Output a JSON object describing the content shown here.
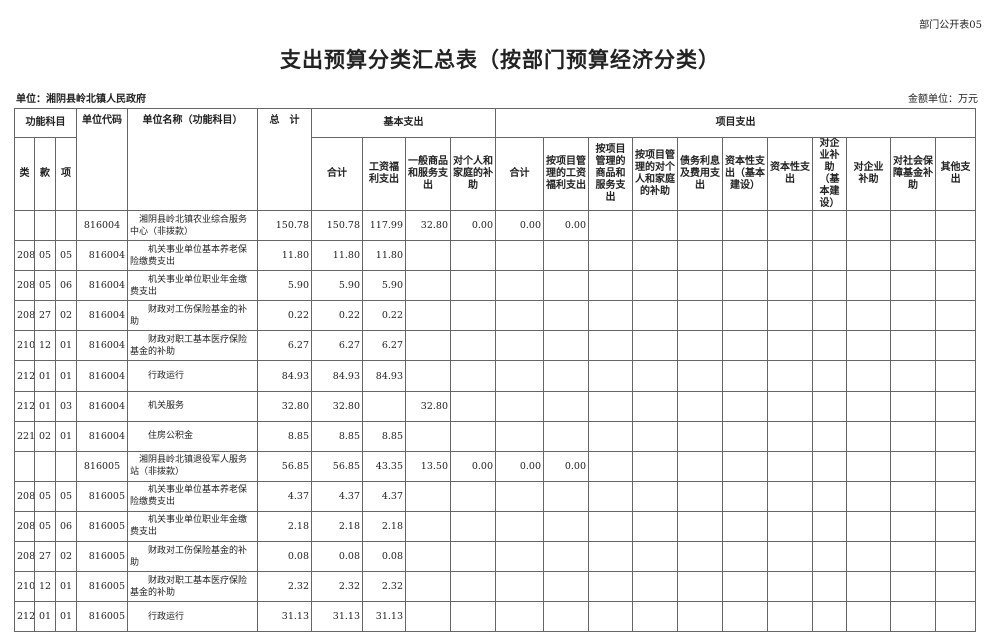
{
  "form_no": "部门公开表05",
  "title": "支出预算分类汇总表（按部门预算经济分类）",
  "unit": "单位：湘阴县岭北镇人民政府",
  "money_unit": "金额单位：万元",
  "headers": {
    "func_subject": "功能科目",
    "lei": "类",
    "kuan": "款",
    "xiang": "项",
    "unit_code": "单位代码",
    "unit_name": "单位名称（功能科目）",
    "total": "总　计",
    "basic": "基本支出",
    "project": "项目支出",
    "basic_cols": [
      "合计",
      "工资福利支出",
      "一般商品和服务支出",
      "对个人和家庭的补助"
    ],
    "project_cols": [
      "合计",
      "按项目管理的工资福利支出",
      "按项目管理的商品和服务支出",
      "按项目管理的对个人和家庭的补助",
      "债务利息及费用支出",
      "资本性支出（基本建设）",
      "资本性支出",
      "对企业补助（基本建设）",
      "对企业补助",
      "对社会保障基金补助",
      "其他支出"
    ]
  },
  "rows": [
    [
      "",
      "",
      "",
      "816004",
      "湘阴县岭北镇农业综合服务中心（非拨款）",
      "150.78",
      "150.78",
      "117.99",
      "32.80",
      "0.00",
      "0.00",
      "0.00"
    ],
    [
      "208",
      "05",
      "05",
      "816004",
      "机关事业单位基本养老保险缴费支出",
      "11.80",
      "11.80",
      "11.80",
      "",
      "",
      "",
      ""
    ],
    [
      "208",
      "05",
      "06",
      "816004",
      "机关事业单位职业年金缴费支出",
      "5.90",
      "5.90",
      "5.90",
      "",
      "",
      "",
      ""
    ],
    [
      "208",
      "27",
      "02",
      "816004",
      "财政对工伤保险基金的补助",
      "0.22",
      "0.22",
      "0.22",
      "",
      "",
      "",
      ""
    ],
    [
      "210",
      "12",
      "01",
      "816004",
      "财政对职工基本医疗保险基金的补助",
      "6.27",
      "6.27",
      "6.27",
      "",
      "",
      "",
      ""
    ],
    [
      "212",
      "01",
      "01",
      "816004",
      "行政运行",
      "84.93",
      "84.93",
      "84.93",
      "",
      "",
      "",
      ""
    ],
    [
      "212",
      "01",
      "03",
      "816004",
      "机关服务",
      "32.80",
      "32.80",
      "",
      "32.80",
      "",
      "",
      ""
    ],
    [
      "221",
      "02",
      "01",
      "816004",
      "住房公积金",
      "8.85",
      "8.85",
      "8.85",
      "",
      "",
      "",
      ""
    ],
    [
      "",
      "",
      "",
      "816005",
      "湘阴县岭北镇退役军人服务站（非拨款）",
      "56.85",
      "56.85",
      "43.35",
      "13.50",
      "0.00",
      "0.00",
      "0.00"
    ],
    [
      "208",
      "05",
      "05",
      "816005",
      "机关事业单位基本养老保险缴费支出",
      "4.37",
      "4.37",
      "4.37",
      "",
      "",
      "",
      ""
    ],
    [
      "208",
      "05",
      "06",
      "816005",
      "机关事业单位职业年金缴费支出",
      "2.18",
      "2.18",
      "2.18",
      "",
      "",
      "",
      ""
    ],
    [
      "208",
      "27",
      "02",
      "816005",
      "财政对工伤保险基金的补助",
      "0.08",
      "0.08",
      "0.08",
      "",
      "",
      "",
      ""
    ],
    [
      "210",
      "12",
      "01",
      "816005",
      "财政对职工基本医疗保险基金的补助",
      "2.32",
      "2.32",
      "2.32",
      "",
      "",
      "",
      ""
    ],
    [
      "212",
      "01",
      "01",
      "816005",
      "行政运行",
      "31.13",
      "31.13",
      "31.13",
      "",
      "",
      "",
      ""
    ]
  ]
}
